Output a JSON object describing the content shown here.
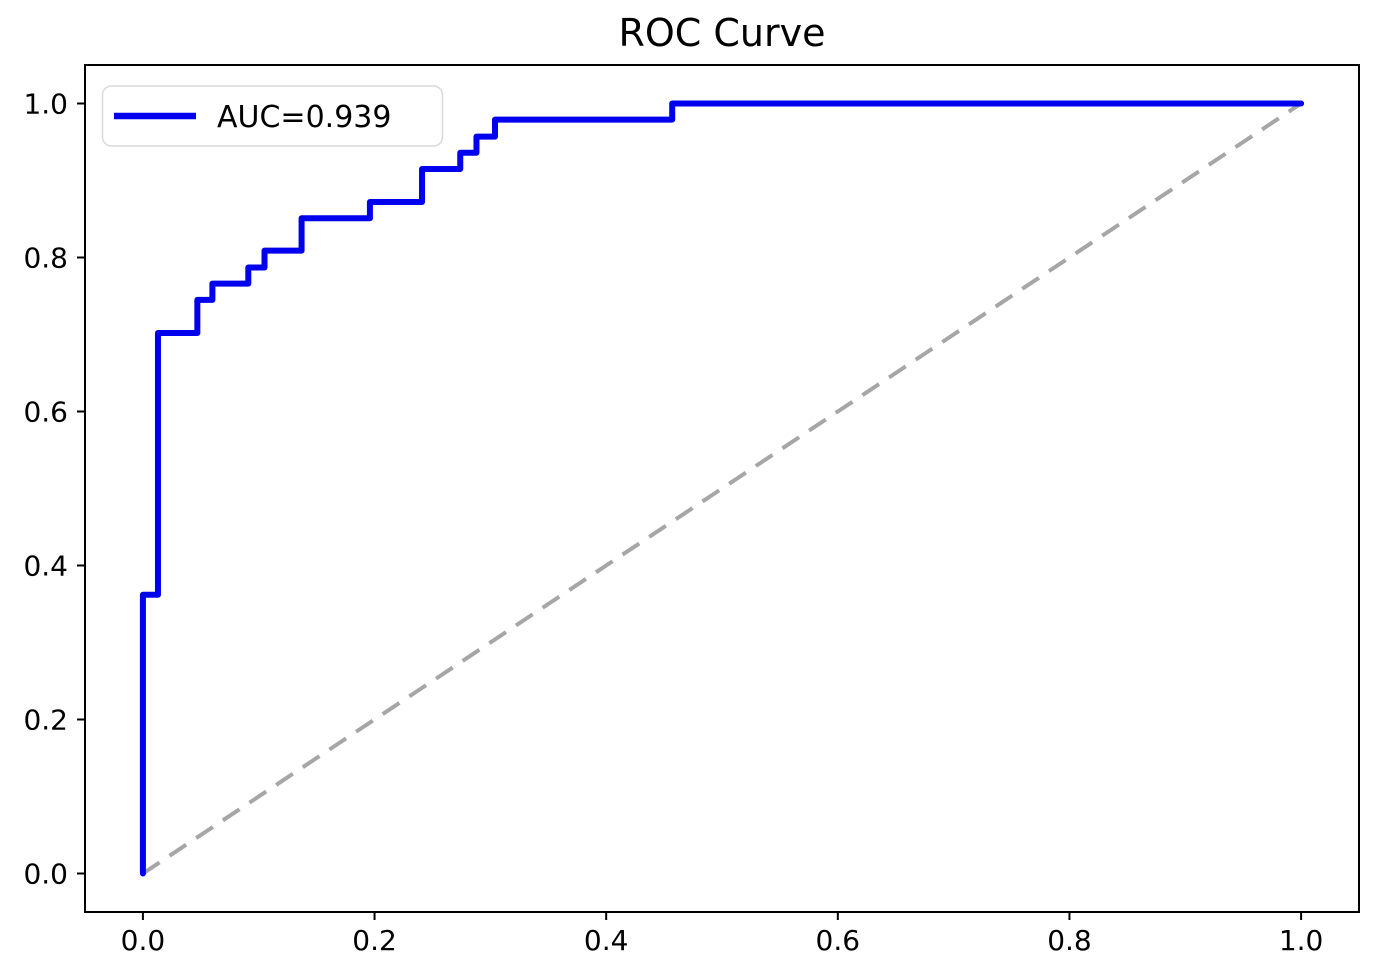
{
  "figure": {
    "background": "#ffffff",
    "spine_color": "#000000"
  },
  "chart_data": {
    "type": "line",
    "title": "ROC Curve",
    "xlabel": "",
    "ylabel": "",
    "grid": false,
    "xlim": [
      -0.05,
      1.05
    ],
    "ylim": [
      -0.05,
      1.05
    ],
    "x_ticks": [
      {
        "value": 0.0,
        "label": "0.0"
      },
      {
        "value": 0.2,
        "label": "0.2"
      },
      {
        "value": 0.4,
        "label": "0.4"
      },
      {
        "value": 0.6,
        "label": "0.6"
      },
      {
        "value": 0.8,
        "label": "0.8"
      },
      {
        "value": 1.0,
        "label": "1.0"
      }
    ],
    "y_ticks": [
      {
        "value": 0.0,
        "label": "0.0"
      },
      {
        "value": 0.2,
        "label": "0.2"
      },
      {
        "value": 0.4,
        "label": "0.4"
      },
      {
        "value": 0.6,
        "label": "0.6"
      },
      {
        "value": 0.8,
        "label": "0.8"
      },
      {
        "value": 1.0,
        "label": "1.0"
      }
    ],
    "legend": {
      "label": "AUC=0.939",
      "position": "upper-left"
    },
    "auc": 0.939,
    "series": [
      {
        "name": "chance-diagonal",
        "draw": "line",
        "color": "#a6a6a6",
        "linewidth": 4,
        "dash": [
          20,
          12
        ],
        "points": [
          [
            0.0,
            0.0
          ],
          [
            1.0,
            1.0
          ]
        ]
      },
      {
        "name": "roc-curve",
        "draw": "step-post",
        "color": "#0000ee",
        "linewidth": 6,
        "dash": null,
        "points": [
          [
            0.0,
            0.0
          ],
          [
            0.0,
            0.362
          ],
          [
            0.013,
            0.702
          ],
          [
            0.047,
            0.745
          ],
          [
            0.06,
            0.766
          ],
          [
            0.091,
            0.787
          ],
          [
            0.105,
            0.809
          ],
          [
            0.137,
            0.851
          ],
          [
            0.196,
            0.872
          ],
          [
            0.241,
            0.915
          ],
          [
            0.274,
            0.936
          ],
          [
            0.288,
            0.957
          ],
          [
            0.304,
            0.979
          ],
          [
            0.457,
            1.0
          ],
          [
            1.0,
            1.0
          ]
        ]
      }
    ]
  }
}
